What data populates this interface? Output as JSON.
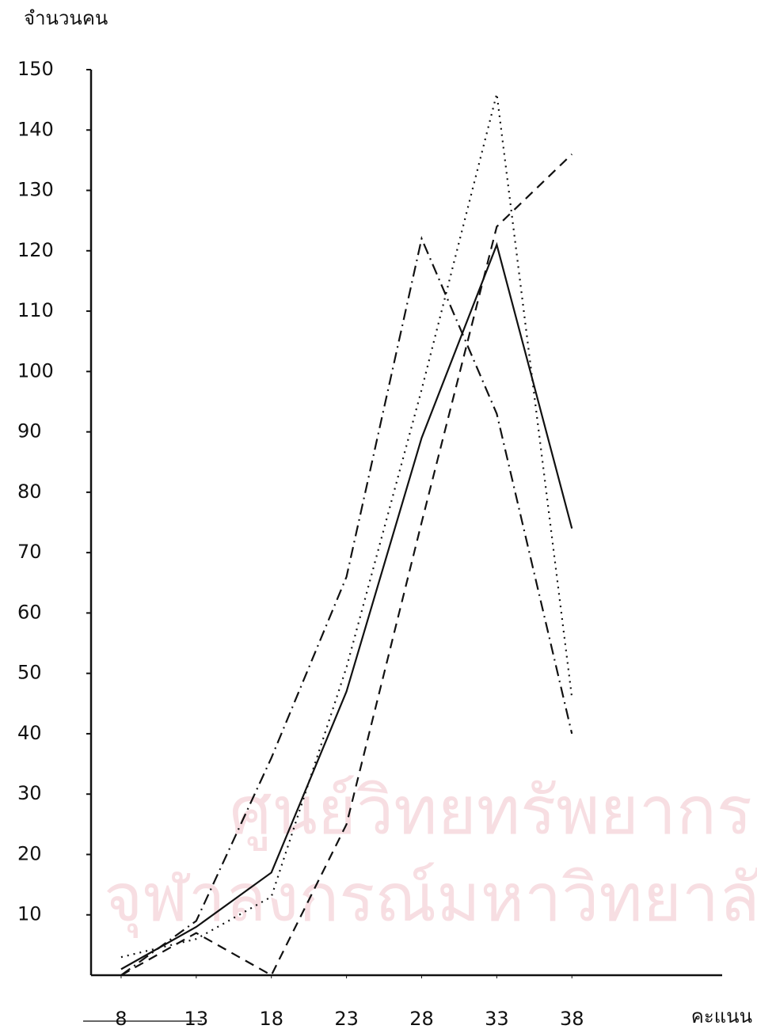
{
  "chart_data": {
    "type": "line",
    "ylabel": "จำนวนคน",
    "xlabel": "คะแนน",
    "watermark": [
      "ศูนย์วิทยทรัพยากร",
      "จุฬาลงกรณ์มหาวิทยาลัย"
    ],
    "xlim": [
      6,
      48
    ],
    "xticks": [
      8,
      13,
      18,
      23,
      28,
      33,
      38
    ],
    "ylim": [
      0,
      150
    ],
    "yticks": [
      10,
      20,
      30,
      40,
      50,
      60,
      70,
      80,
      90,
      100,
      110,
      120,
      130,
      140,
      150
    ],
    "grid": false,
    "series": [
      {
        "color": "#111111",
        "dash": "solid",
        "x": [
          8,
          13,
          18,
          23,
          28,
          33,
          38
        ],
        "values": [
          1,
          8,
          17,
          47,
          89,
          121,
          74
        ]
      },
      {
        "color": "#111111",
        "dash": "dashed",
        "x": [
          8,
          13,
          18,
          23,
          28,
          33,
          38
        ],
        "values": [
          0,
          7,
          0,
          25,
          75,
          124,
          136
        ]
      },
      {
        "color": "#111111",
        "dash": "dotted",
        "x": [
          8,
          13,
          18,
          23,
          28,
          33,
          38
        ],
        "values": [
          3,
          6,
          13,
          51,
          97,
          146,
          46
        ]
      },
      {
        "color": "#111111",
        "dash": "dashdot",
        "x": [
          8,
          13,
          18,
          23,
          28,
          33,
          38
        ],
        "values": [
          0,
          9,
          36,
          66,
          122,
          93,
          40
        ]
      }
    ]
  }
}
